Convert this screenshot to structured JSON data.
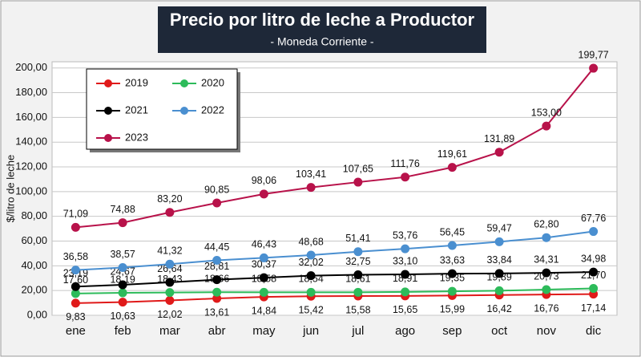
{
  "chart_data": {
    "type": "line",
    "title": "Precio por litro de leche a Productor",
    "subtitle": "- Moneda Corriente -",
    "y_label": "$/litro de leche",
    "categories": [
      "ene",
      "feb",
      "mar",
      "abr",
      "may",
      "jun",
      "jul",
      "ago",
      "sep",
      "oct",
      "nov",
      "dic"
    ],
    "ylim": [
      0,
      205
    ],
    "yticks": [
      {
        "value": 0,
        "label": "0,00"
      },
      {
        "value": 20,
        "label": "20,00"
      },
      {
        "value": 40,
        "label": "40,00"
      },
      {
        "value": 60,
        "label": "60,00"
      },
      {
        "value": 80,
        "label": "80,00"
      },
      {
        "value": 100,
        "label": "100,00"
      },
      {
        "value": 120,
        "label": "120,00"
      },
      {
        "value": 140,
        "label": "140,00"
      },
      {
        "value": 160,
        "label": "160,00"
      },
      {
        "value": 180,
        "label": "180,00"
      },
      {
        "value": 200,
        "label": "200,00"
      }
    ],
    "grid": true,
    "legend": "upper left",
    "series": [
      {
        "name": "2019",
        "color": "#e01a1a",
        "values": [
          9.83,
          10.63,
          12.02,
          13.61,
          14.84,
          15.42,
          15.58,
          15.65,
          15.99,
          16.42,
          16.76,
          17.14
        ],
        "value_labels": [
          "9,83",
          "10,63",
          "12,02",
          "13,61",
          "14,84",
          "15,42",
          "15,58",
          "15,65",
          "15,99",
          "16,42",
          "16,76",
          "17,14"
        ]
      },
      {
        "name": "2020",
        "color": "#2dbb5a",
        "values": [
          17.6,
          18.19,
          18.43,
          18.66,
          18.58,
          18.54,
          18.61,
          18.91,
          19.35,
          19.89,
          20.73,
          21.7
        ],
        "value_labels": [
          "17,60",
          "18,19",
          "18,43",
          "18,66",
          "18,58",
          "18,54",
          "18,61",
          "18,91",
          "19,35",
          "19,89",
          "20,73",
          "21,70"
        ]
      },
      {
        "name": "2021",
        "color": "#000000",
        "values": [
          23.19,
          24.67,
          26.64,
          28.81,
          30.37,
          32.02,
          32.75,
          33.1,
          33.63,
          33.84,
          34.31,
          34.98
        ],
        "value_labels": [
          "23,19",
          "24,67",
          "26,64",
          "28,81",
          "30,37",
          "32,02",
          "32,75",
          "33,10",
          "33,63",
          "33,84",
          "34,31",
          "34,98"
        ]
      },
      {
        "name": "2022",
        "color": "#4a8fd0",
        "values": [
          36.58,
          38.57,
          41.32,
          44.45,
          46.43,
          48.68,
          51.41,
          53.76,
          56.45,
          59.47,
          62.8,
          67.76
        ],
        "value_labels": [
          "36,58",
          "38,57",
          "41,32",
          "44,45",
          "46,43",
          "48,68",
          "51,41",
          "53,76",
          "56,45",
          "59,47",
          "62,80",
          "67,76"
        ]
      },
      {
        "name": "2023",
        "color": "#b8124a",
        "values": [
          71.09,
          74.88,
          83.2,
          90.85,
          98.06,
          103.41,
          107.65,
          111.76,
          119.61,
          131.89,
          153.0,
          199.77
        ],
        "value_labels": [
          "71,09",
          "74,88",
          "83,20",
          "90,85",
          "98,06",
          "103,41",
          "107,65",
          "111,76",
          "119,61",
          "131,89",
          "153,00",
          "199,77"
        ]
      }
    ]
  }
}
